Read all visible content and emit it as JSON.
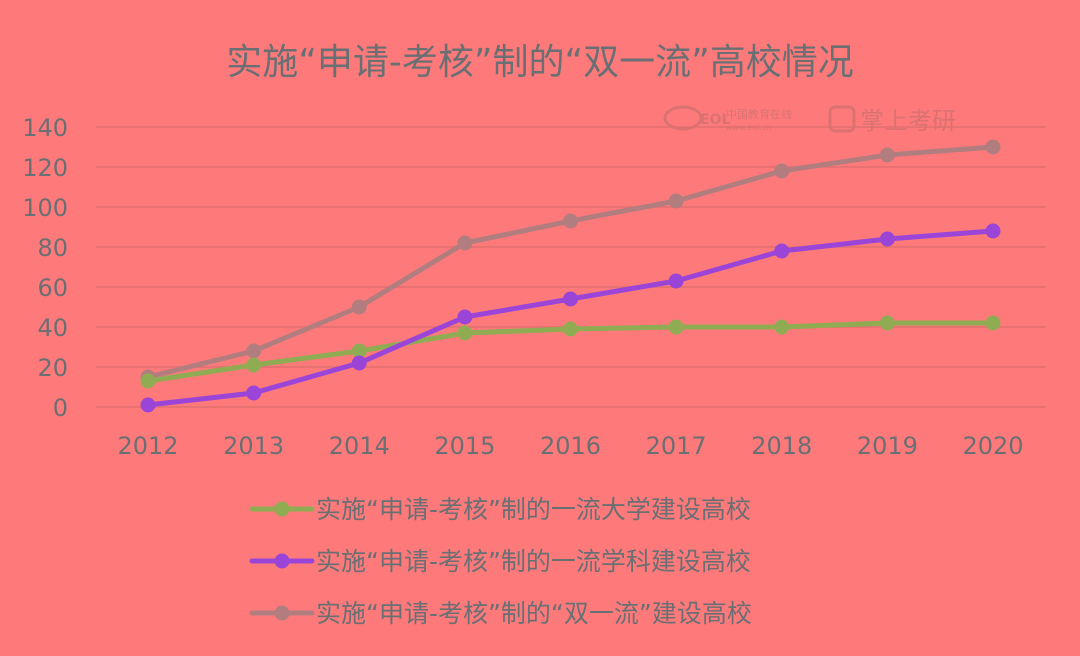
{
  "colors": {
    "background": "#fe7a7a",
    "grid": "#e06e6e",
    "text": "#6a6f74",
    "series": [
      "#8fac52",
      "#9a45d8",
      "#b27d7f"
    ]
  },
  "watermark": {
    "logo_text": "EOL",
    "brand_cn": "中国教育在线",
    "url": "www.eol.cn",
    "app_name": "掌上考研"
  },
  "chart_data": {
    "type": "line",
    "title": "实施“申请-考核”制的“双一流”高校情况",
    "x": [
      "2012",
      "2013",
      "2014",
      "2015",
      "2016",
      "2017",
      "2018",
      "2019",
      "2020"
    ],
    "y_ticks": [
      "0",
      "20",
      "40",
      "60",
      "80",
      "100",
      "120",
      "140"
    ],
    "ylim": [
      0,
      140
    ],
    "grid": true,
    "legend_position": "bottom",
    "series": [
      {
        "name": "实施“申请-考核”制的一流大学建设高校",
        "values": [
          13,
          21,
          28,
          37,
          39,
          40,
          40,
          42,
          42
        ]
      },
      {
        "name": "实施“申请-考核”制的一流学科建设高校",
        "values": [
          1,
          7,
          22,
          45,
          54,
          63,
          78,
          84,
          88
        ]
      },
      {
        "name": "实施“申请-考核”制的“双一流”建设高校",
        "values": [
          15,
          28,
          50,
          82,
          93,
          103,
          118,
          126,
          130
        ]
      }
    ]
  }
}
